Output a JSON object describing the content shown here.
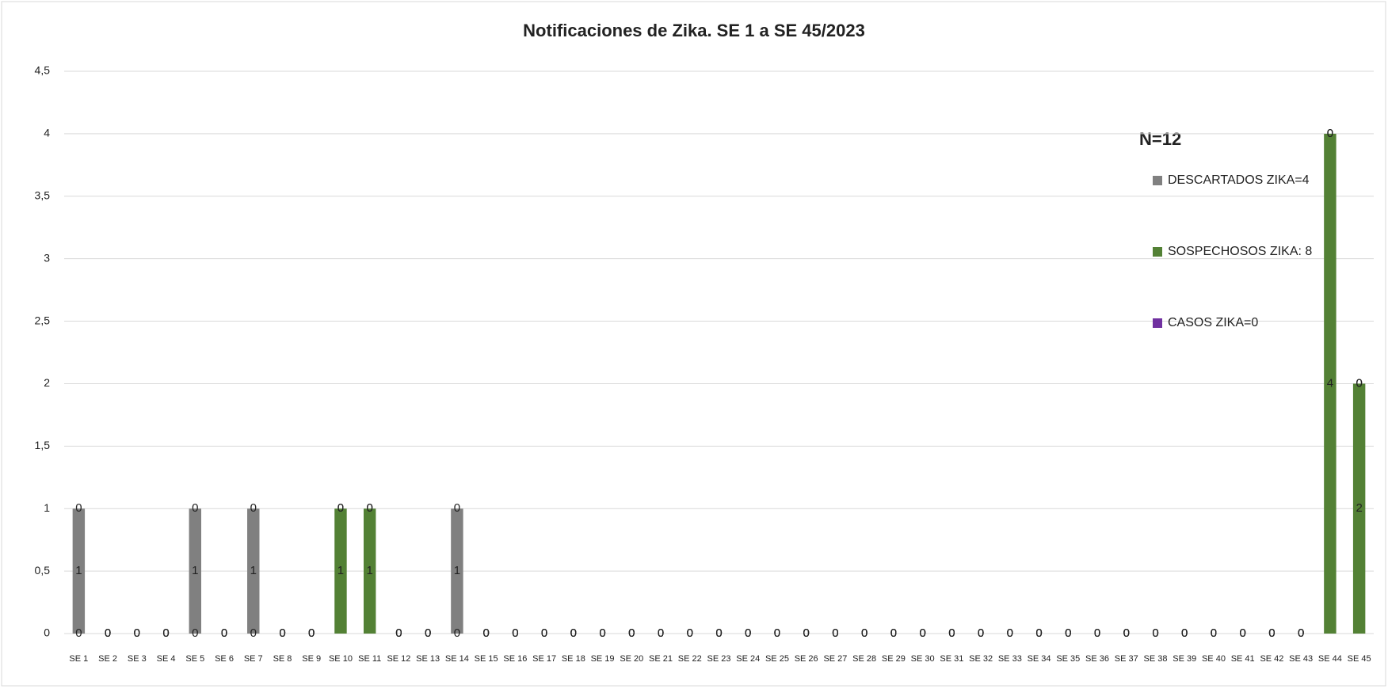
{
  "chart_data": {
    "type": "stacked_bar",
    "title": "Notificaciones de Zika. SE 1 a SE  45/2023",
    "annotations": [
      "N=12"
    ],
    "categories": [
      "SE 1",
      "SE 2",
      "SE 3",
      "SE 4",
      "SE 5",
      "SE 6",
      "SE 7",
      "SE 8",
      "SE 9",
      "SE 10",
      "SE 11",
      "SE 12",
      "SE 13",
      "SE 14",
      "SE 15",
      "SE 16",
      "SE 17",
      "SE 18",
      "SE 19",
      "SE 20",
      "SE 21",
      "SE 22",
      "SE 23",
      "SE 24",
      "SE 25",
      "SE 26",
      "SE 27",
      "SE 28",
      "SE 29",
      "SE 30",
      "SE 31",
      "SE 32",
      "SE 33",
      "SE 34",
      "SE 35",
      "SE 36",
      "SE 37",
      "SE 38",
      "SE 39",
      "SE 40",
      "SE 41",
      "SE 42",
      "SE 43",
      "SE 44",
      "SE 45"
    ],
    "series": [
      {
        "name": "SOSPECHOSOS ZIKA: 8",
        "color": "#538135",
        "values": [
          0,
          0,
          0,
          0,
          0,
          0,
          0,
          0,
          0,
          1,
          1,
          0,
          0,
          0,
          0,
          0,
          0,
          0,
          0,
          0,
          0,
          0,
          0,
          0,
          0,
          0,
          0,
          0,
          0,
          0,
          0,
          0,
          0,
          0,
          0,
          0,
          0,
          0,
          0,
          0,
          0,
          0,
          0,
          4,
          2
        ]
      },
      {
        "name": "DESCARTADOS ZIKA=4",
        "color": "#808080",
        "values": [
          1,
          0,
          0,
          0,
          1,
          0,
          1,
          0,
          0,
          0,
          0,
          0,
          0,
          1,
          0,
          0,
          0,
          0,
          0,
          0,
          0,
          0,
          0,
          0,
          0,
          0,
          0,
          0,
          0,
          0,
          0,
          0,
          0,
          0,
          0,
          0,
          0,
          0,
          0,
          0,
          0,
          0,
          0,
          0,
          0
        ]
      },
      {
        "name": "CASOS ZIKA=0",
        "color": "#7030a0",
        "values": [
          0,
          0,
          0,
          0,
          0,
          0,
          0,
          0,
          0,
          0,
          0,
          0,
          0,
          0,
          0,
          0,
          0,
          0,
          0,
          0,
          0,
          0,
          0,
          0,
          0,
          0,
          0,
          0,
          0,
          0,
          0,
          0,
          0,
          0,
          0,
          0,
          0,
          0,
          0,
          0,
          0,
          0,
          0,
          0,
          0
        ]
      }
    ],
    "legend_order": [
      1,
      0,
      2
    ],
    "ylim": [
      0,
      4.5
    ],
    "yticks": [
      0,
      {
        "value": 0.5,
        "label": "0,5"
      },
      1,
      {
        "value": 1.5,
        "label": "1,5"
      },
      2,
      {
        "value": 2.5,
        "label": "2,5"
      },
      3,
      {
        "value": 3.5,
        "label": "3,5"
      },
      4,
      {
        "value": 4.5,
        "label": "4,5"
      }
    ],
    "grid": true,
    "legend": "right"
  }
}
